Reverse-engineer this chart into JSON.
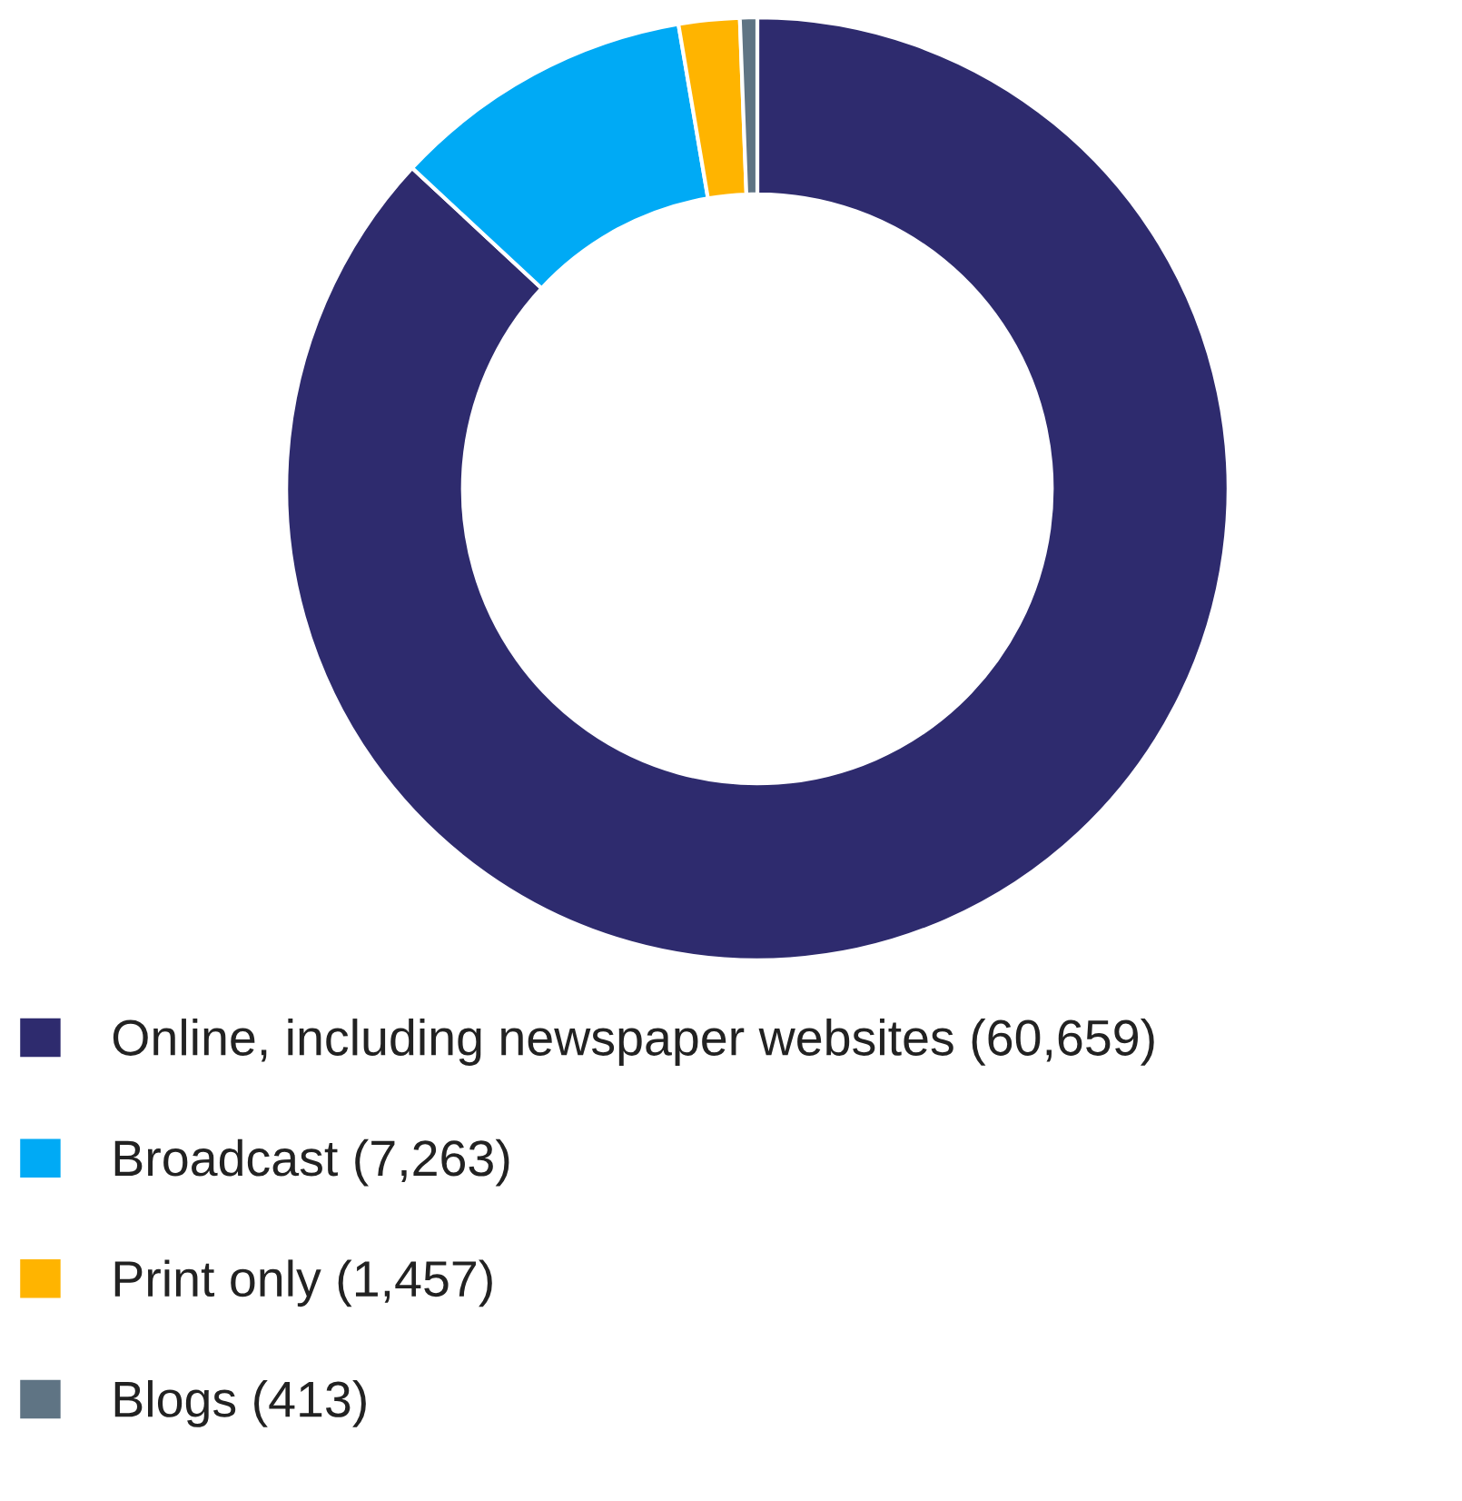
{
  "chart_data": {
    "type": "donut",
    "categories": [
      "Online, including newspaper websites",
      "Broadcast",
      "Print only",
      "Blogs"
    ],
    "values": [
      60659,
      7263,
      1457,
      413
    ],
    "value_labels": [
      "(60,659)",
      "(7,263)",
      "(1,457)",
      "(413)"
    ],
    "colors": [
      "#2e2b6e",
      "#00aaf5",
      "#ffb400",
      "#5f7484"
    ],
    "legend": "bottom"
  }
}
